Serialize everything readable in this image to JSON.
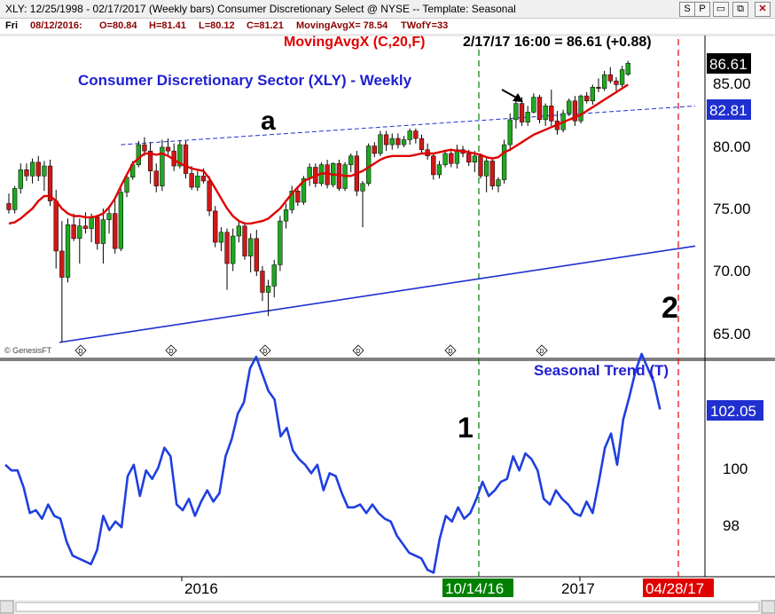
{
  "window": {
    "caption": "XLY: 12/25/1998 - 02/17/2017  (Weekly bars)   Consumer Discretionary Select @ NYSE  --  Template: Seasonal",
    "buttons": [
      {
        "name": "script-button",
        "label": "S"
      },
      {
        "name": "print-button",
        "label": "P"
      },
      {
        "name": "minimize-button",
        "label": "▭"
      },
      {
        "name": "restore-button",
        "label": "⧉"
      },
      {
        "name": "close-button",
        "label": "✕"
      }
    ]
  },
  "info_bar": {
    "day": "Fri",
    "date": "08/12/2016:",
    "open": "O=80.84",
    "high": "H=81.41",
    "low": "L=80.12",
    "close": "C=81.21",
    "ma": "MovingAvgX= 78.54",
    "twofyt": "TWofY=33"
  },
  "upper_panel": {
    "ma_label": "MovingAvgX (C,20,F)",
    "readout": "2/17/17 16:00 = 86.61 (+0.88)",
    "title": "Consumer Discretionary Sector (XLY) - Weekly",
    "annotation_a": "a",
    "annotation_2": "2",
    "last_price": "86.61",
    "trendline_value": "82.81",
    "y_ticks": [
      "85.00",
      "80.00",
      "75.00",
      "70.00",
      "65.00"
    ],
    "watermark": "© GenesisFT",
    "event_markers": [
      "D",
      "D",
      "D",
      "D",
      "D",
      "D"
    ]
  },
  "lower_panel": {
    "title": "Seasonal Trend (T)",
    "annotation_1": "1",
    "last_value": "102.05",
    "y_ticks": [
      "100",
      "98"
    ]
  },
  "x_axis": {
    "labels": [
      "2016",
      "2017"
    ],
    "highlight_green": "10/14/16",
    "highlight_red": "04/28/17"
  },
  "colors": {
    "up_candle": "#1fa81f",
    "down_candle": "#d01818",
    "moving_average": "#e00000",
    "trendlines": "#1f2fd0",
    "seasonal_line": "#1f3fe0",
    "green_marker": "#008000",
    "red_marker": "#e00000",
    "title_blue": "#1f1fd0"
  },
  "chart_data": [
    {
      "type": "candlestick",
      "title": "Consumer Discretionary Sector (XLY) - Weekly",
      "ylim": [
        63.5,
        88.5
      ],
      "y_ticks": [
        65,
        70,
        75,
        80,
        85
      ],
      "candles": [
        [
          75.4,
          76.2,
          74.6,
          74.9
        ],
        [
          74.9,
          76.8,
          74.6,
          76.6
        ],
        [
          76.6,
          78.6,
          76.2,
          78.1
        ],
        [
          78.1,
          78.6,
          77.2,
          77.6
        ],
        [
          77.6,
          79.0,
          77.0,
          78.7
        ],
        [
          78.7,
          79.2,
          77.2,
          77.6
        ],
        [
          77.6,
          78.8,
          76.4,
          78.4
        ],
        [
          78.4,
          78.9,
          75.2,
          75.6
        ],
        [
          75.6,
          76.5,
          70.2,
          71.6
        ],
        [
          71.6,
          74.0,
          64.3,
          69.5
        ],
        [
          69.5,
          74.2,
          69.1,
          73.7
        ],
        [
          73.7,
          74.6,
          72.4,
          72.6
        ],
        [
          72.6,
          74.2,
          70.6,
          73.6
        ],
        [
          73.6,
          74.7,
          73.0,
          73.4
        ],
        [
          73.4,
          74.6,
          72.3,
          74.3
        ],
        [
          74.3,
          74.5,
          71.7,
          72.2
        ],
        [
          72.2,
          75.0,
          70.6,
          74.1
        ],
        [
          74.1,
          75.2,
          73.0,
          74.6
        ],
        [
          74.6,
          75.9,
          71.4,
          71.8
        ],
        [
          71.8,
          76.6,
          71.6,
          76.3
        ],
        [
          76.3,
          77.8,
          75.9,
          77.5
        ],
        [
          77.5,
          78.8,
          77.3,
          78.5
        ],
        [
          78.5,
          80.4,
          78.3,
          80.1
        ],
        [
          80.1,
          80.7,
          79.2,
          79.6
        ],
        [
          79.6,
          80.3,
          77.0,
          78.0
        ],
        [
          78.0,
          78.6,
          76.3,
          76.8
        ],
        [
          76.8,
          80.5,
          76.4,
          79.9
        ],
        [
          79.9,
          80.6,
          79.2,
          79.6
        ],
        [
          79.6,
          80.2,
          78.0,
          78.4
        ],
        [
          78.4,
          80.4,
          78.2,
          80.1
        ],
        [
          80.1,
          80.4,
          77.4,
          77.8
        ],
        [
          77.8,
          78.4,
          76.5,
          76.7
        ],
        [
          76.7,
          78.0,
          76.4,
          77.6
        ],
        [
          77.6,
          78.2,
          77.0,
          77.2
        ],
        [
          77.2,
          77.6,
          74.4,
          74.8
        ],
        [
          74.8,
          75.2,
          71.9,
          72.3
        ],
        [
          72.3,
          73.5,
          71.6,
          73.1
        ],
        [
          73.1,
          73.4,
          68.5,
          70.6
        ],
        [
          70.6,
          73.4,
          70.0,
          72.8
        ],
        [
          72.8,
          74.1,
          72.3,
          73.6
        ],
        [
          73.6,
          73.9,
          70.9,
          71.2
        ],
        [
          71.2,
          73.0,
          69.9,
          72.6
        ],
        [
          72.6,
          73.3,
          69.6,
          70.0
        ],
        [
          70.0,
          70.4,
          67.6,
          68.3
        ],
        [
          68.3,
          69.3,
          66.4,
          68.8
        ],
        [
          68.8,
          70.9,
          67.9,
          70.5
        ],
        [
          70.5,
          74.4,
          70.0,
          74.0
        ],
        [
          74.0,
          75.4,
          73.4,
          74.9
        ],
        [
          74.9,
          76.8,
          74.6,
          76.4
        ],
        [
          76.4,
          76.8,
          75.2,
          75.5
        ],
        [
          75.5,
          77.6,
          75.3,
          77.4
        ],
        [
          77.4,
          78.6,
          76.8,
          78.3
        ],
        [
          78.3,
          78.6,
          76.7,
          77.0
        ],
        [
          77.0,
          78.7,
          76.8,
          78.5
        ],
        [
          78.5,
          78.9,
          76.6,
          76.9
        ],
        [
          76.9,
          78.7,
          76.7,
          78.6
        ],
        [
          78.6,
          78.9,
          76.4,
          76.6
        ],
        [
          76.6,
          78.7,
          76.4,
          78.5
        ],
        [
          78.5,
          79.4,
          77.9,
          79.2
        ],
        [
          79.2,
          79.6,
          76.0,
          76.4
        ],
        [
          76.4,
          77.2,
          73.5,
          77.0
        ],
        [
          77.0,
          80.2,
          76.8,
          80.0
        ],
        [
          80.0,
          80.3,
          79.1,
          79.4
        ],
        [
          79.4,
          81.2,
          79.2,
          80.9
        ],
        [
          80.9,
          81.2,
          79.6,
          80.1
        ],
        [
          80.1,
          81.0,
          79.7,
          80.6
        ],
        [
          80.6,
          81.0,
          79.8,
          80.1
        ],
        [
          80.1,
          80.8,
          79.9,
          80.5
        ],
        [
          80.5,
          81.4,
          80.1,
          81.2
        ],
        [
          81.2,
          81.4,
          80.2,
          80.6
        ],
        [
          80.6,
          80.9,
          79.4,
          79.7
        ],
        [
          79.7,
          80.2,
          78.9,
          79.2
        ],
        [
          79.2,
          79.4,
          77.3,
          77.7
        ],
        [
          77.7,
          78.8,
          77.4,
          78.5
        ],
        [
          78.5,
          79.7,
          78.3,
          79.4
        ],
        [
          79.4,
          79.6,
          78.3,
          78.6
        ],
        [
          78.6,
          80.1,
          78.2,
          79.7
        ],
        [
          79.7,
          80.0,
          79.1,
          79.4
        ],
        [
          79.4,
          79.7,
          78.4,
          78.7
        ],
        [
          78.7,
          79.6,
          77.9,
          79.2
        ],
        [
          79.2,
          79.4,
          77.4,
          77.6
        ],
        [
          77.6,
          79.0,
          76.3,
          78.8
        ],
        [
          78.8,
          79.1,
          76.5,
          76.8
        ],
        [
          76.8,
          77.5,
          76.3,
          77.3
        ],
        [
          77.3,
          80.5,
          77.0,
          80.1
        ],
        [
          80.1,
          82.6,
          79.6,
          82.1
        ],
        [
          82.1,
          83.8,
          81.4,
          83.4
        ],
        [
          83.4,
          83.9,
          81.6,
          81.9
        ],
        [
          81.9,
          83.2,
          81.6,
          82.7
        ],
        [
          82.7,
          84.2,
          82.6,
          83.9
        ],
        [
          83.9,
          84.1,
          81.8,
          82.1
        ],
        [
          82.1,
          83.4,
          81.6,
          83.2
        ],
        [
          83.2,
          84.5,
          81.6,
          82.0
        ],
        [
          82.0,
          82.8,
          80.9,
          81.3
        ],
        [
          81.3,
          82.9,
          81.1,
          82.6
        ],
        [
          82.6,
          83.8,
          82.4,
          83.6
        ],
        [
          83.6,
          84.0,
          81.6,
          82.0
        ],
        [
          82.0,
          84.1,
          81.8,
          84.0
        ],
        [
          84.0,
          84.3,
          83.4,
          83.6
        ],
        [
          83.6,
          84.9,
          83.3,
          84.7
        ],
        [
          84.7,
          85.4,
          84.3,
          84.6
        ],
        [
          84.6,
          86.0,
          84.4,
          85.7
        ],
        [
          85.7,
          86.3,
          85.0,
          85.2
        ],
        [
          85.2,
          85.5,
          84.4,
          84.9
        ],
        [
          84.9,
          86.4,
          84.7,
          86.1
        ],
        [
          85.73,
          86.8,
          85.6,
          86.61
        ]
      ],
      "moving_average_20": [
        73.8,
        73.9,
        74.2,
        74.6,
        75.0,
        75.6,
        76.0,
        76.0,
        75.6,
        75.0,
        74.6,
        74.4,
        74.4,
        74.3,
        74.3,
        74.4,
        74.6,
        75.1,
        75.8,
        76.8,
        77.7,
        78.6,
        79.0,
        79.4,
        79.4,
        79.3,
        79.4,
        79.2,
        78.9,
        78.6,
        78.4,
        78.2,
        78.1,
        78.0,
        77.4,
        76.6,
        75.8,
        75.0,
        74.4,
        74.0,
        73.8,
        73.8,
        73.9,
        74.0,
        74.2,
        74.6,
        75.0,
        75.6,
        76.2,
        76.7,
        77.2,
        77.4,
        77.6,
        77.8,
        77.8,
        77.7,
        77.7,
        77.6,
        77.6,
        77.8,
        78.0,
        78.3,
        78.6,
        78.9,
        79.1,
        79.2,
        79.2,
        79.2,
        79.2,
        79.3,
        79.4,
        79.4,
        79.4,
        79.5,
        79.6,
        79.7,
        79.6,
        79.6,
        79.5,
        79.4,
        79.3,
        79.1,
        79.0,
        79.1,
        79.5,
        79.7,
        80.0,
        80.3,
        80.6,
        80.9,
        81.1,
        81.3,
        81.5,
        81.7,
        81.9,
        82.1,
        82.3,
        82.5,
        82.8,
        83.1,
        83.4,
        83.7,
        84.0,
        84.3,
        84.6,
        84.9
      ],
      "trendline_a": {
        "x": [
          "2015-10",
          "2017-06"
        ],
        "y": [
          80.1,
          83.2
        ]
      },
      "trendline_low": {
        "x": [
          "2015-08",
          "2017-06"
        ],
        "y": [
          64.3,
          72.0
        ]
      }
    },
    {
      "type": "line",
      "title": "Seasonal Trend (T)",
      "ylim": [
        96.0,
        104.5
      ],
      "y_ticks": [
        98,
        100
      ],
      "values": [
        100.1,
        99.9,
        99.9,
        99.3,
        98.4,
        98.5,
        98.2,
        98.7,
        98.3,
        98.2,
        97.4,
        96.9,
        96.8,
        96.7,
        96.6,
        97.1,
        98.3,
        97.8,
        98.1,
        97.9,
        99.7,
        100.1,
        99.0,
        99.9,
        99.6,
        100.0,
        100.7,
        100.4,
        98.7,
        98.5,
        98.9,
        98.3,
        98.8,
        99.2,
        98.8,
        99.1,
        100.4,
        101.0,
        101.9,
        102.3,
        103.5,
        103.9,
        103.3,
        102.7,
        102.4,
        101.1,
        101.4,
        100.6,
        100.3,
        100.1,
        99.8,
        100.1,
        99.2,
        99.8,
        99.7,
        99.1,
        98.6,
        98.6,
        98.7,
        98.4,
        98.7,
        98.4,
        98.2,
        98.1,
        97.6,
        97.3,
        97.0,
        96.9,
        96.8,
        96.4,
        96.3,
        97.5,
        98.3,
        98.1,
        98.6,
        98.2,
        98.4,
        98.9,
        99.5,
        99.0,
        99.2,
        99.5,
        99.6,
        100.4,
        99.9,
        100.5,
        100.3,
        99.9,
        98.9,
        98.7,
        99.2,
        98.9,
        98.7,
        98.4,
        98.3,
        98.8,
        98.4,
        99.5,
        100.7,
        101.2,
        100.1,
        101.7,
        102.5,
        103.4,
        104.0,
        103.5,
        103.0,
        102.05
      ]
    }
  ]
}
